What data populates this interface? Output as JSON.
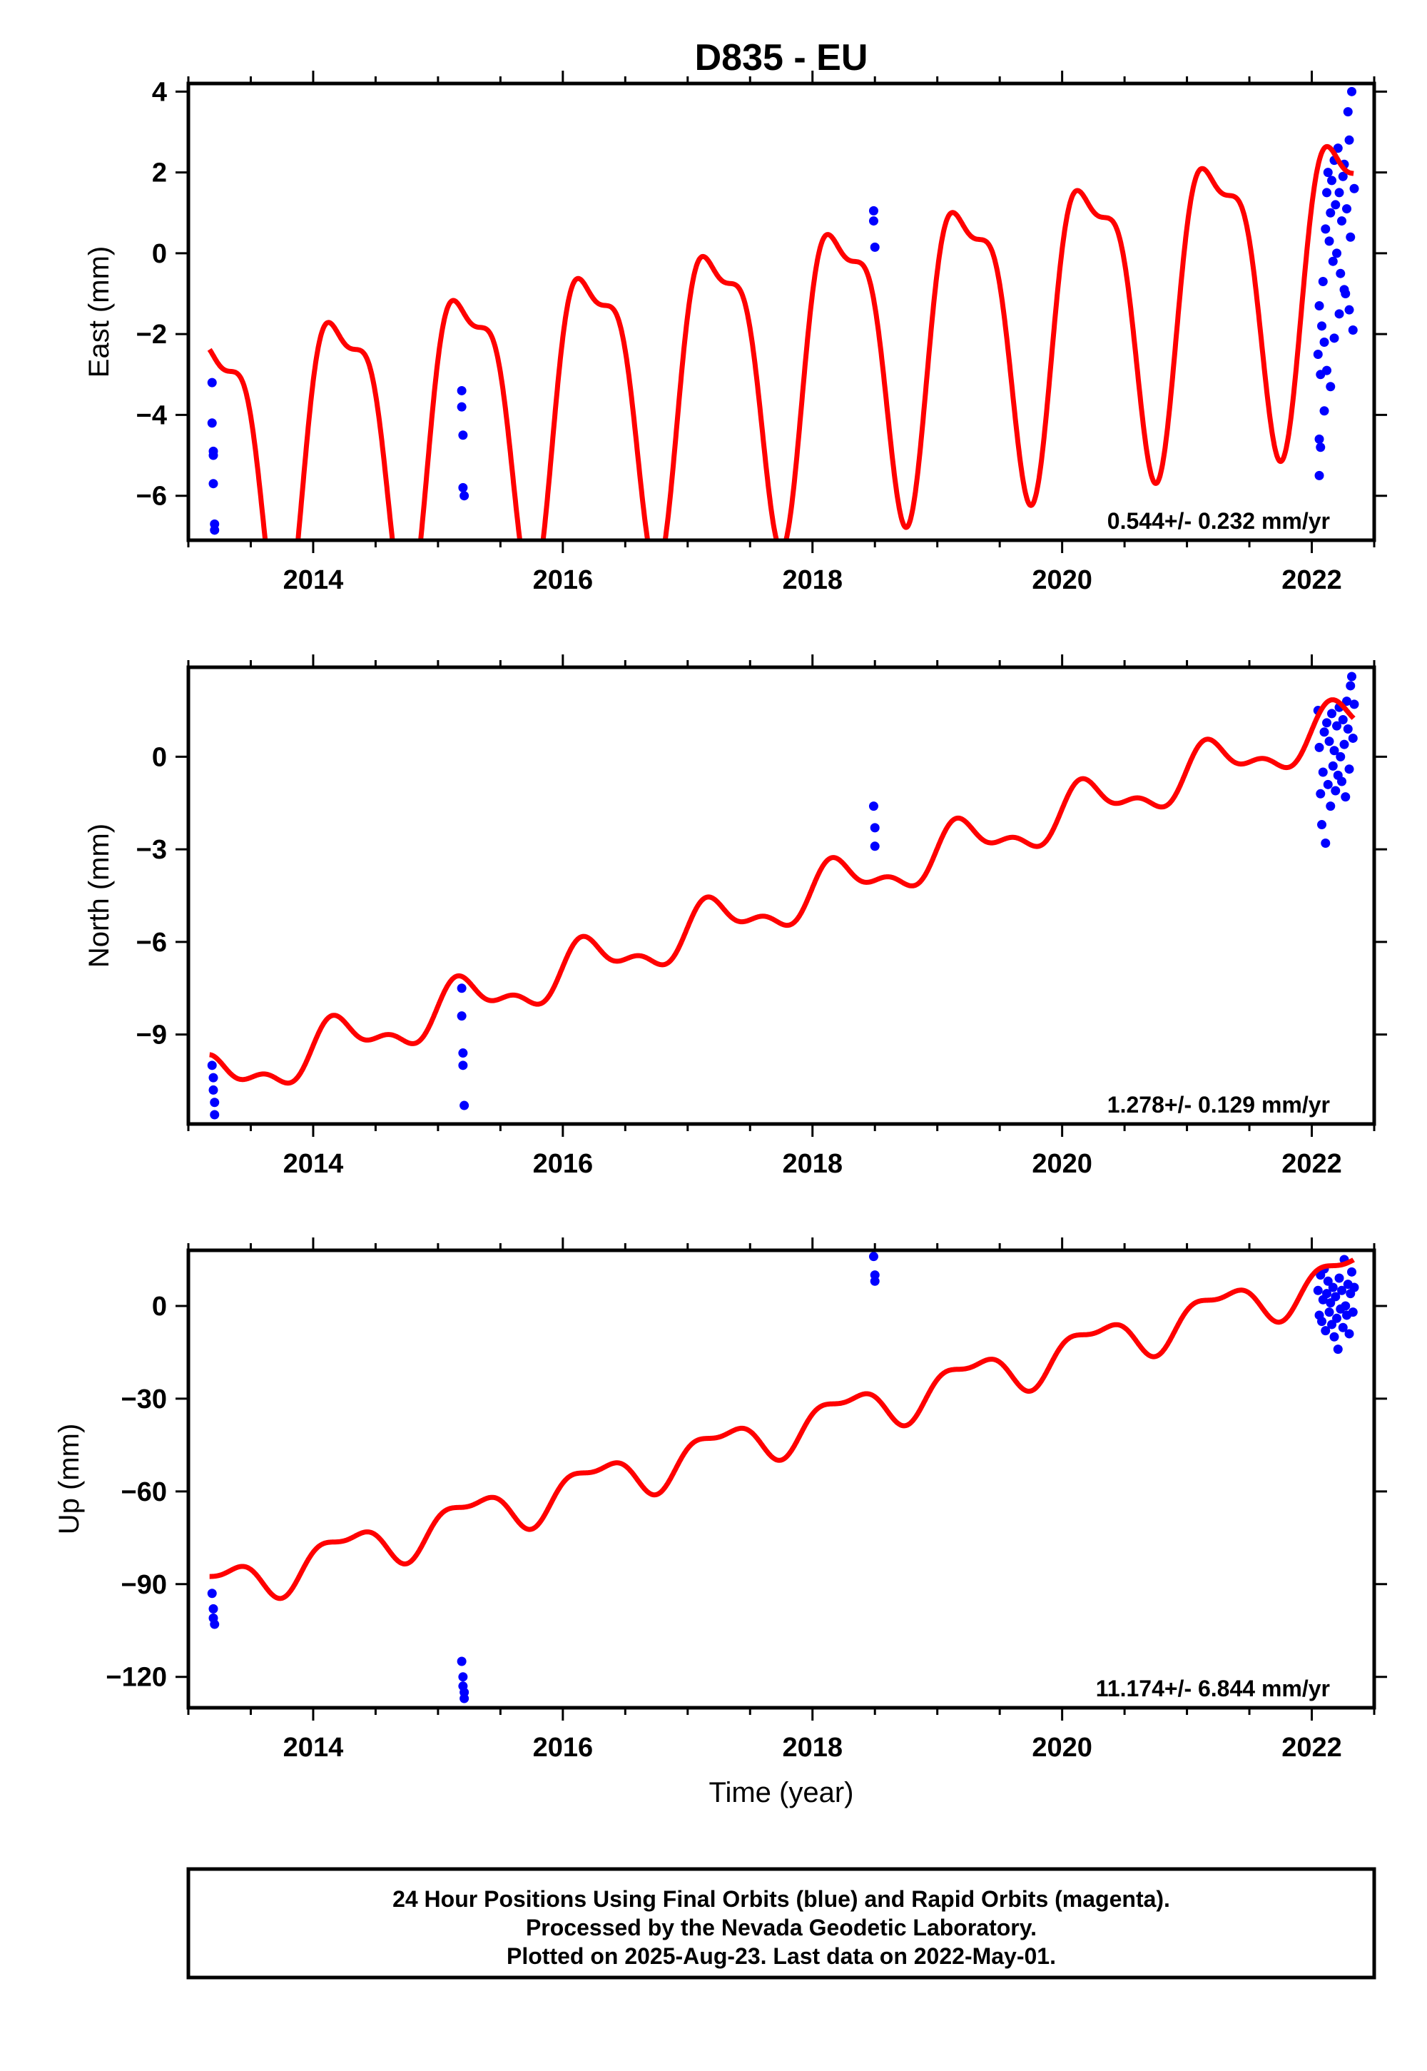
{
  "title": "D835 - EU",
  "colors": {
    "fit": "#ff0000",
    "final": "#0000ff",
    "frame": "#000000"
  },
  "chart_data": [
    {
      "type": "scatter",
      "name": "east",
      "ylabel": "East (mm)",
      "xlim": [
        2013.0,
        2022.5
      ],
      "ylim": [
        -7.1,
        4.2
      ],
      "xticks": [
        "2014",
        "2016",
        "2018",
        "2020",
        "2022"
      ],
      "xtick_values": [
        2014,
        2016,
        2018,
        2020,
        2022
      ],
      "yticks": [
        "4",
        "2",
        "0",
        "−2",
        "−4",
        "−6"
      ],
      "ytick_values": [
        4,
        2,
        0,
        -2,
        -4,
        -6
      ],
      "rate_label": "0.544+/- 0.232 mm/yr",
      "model": {
        "rate": 0.544,
        "ref_year": 2017.8,
        "offset": -2.6,
        "annual_cos": 0.3,
        "annual_sin": 3.5,
        "semi_cos": 1.2,
        "semi_sin": 0.2
      },
      "points": [
        [
          2013.19,
          -3.2
        ],
        [
          2013.19,
          -4.2
        ],
        [
          2013.2,
          -4.9
        ],
        [
          2013.2,
          -5.0
        ],
        [
          2013.2,
          -5.7
        ],
        [
          2013.21,
          -6.7
        ],
        [
          2013.21,
          -6.85
        ],
        [
          2015.19,
          -3.4
        ],
        [
          2015.19,
          -3.8
        ],
        [
          2015.2,
          -4.5
        ],
        [
          2015.2,
          -5.8
        ],
        [
          2015.21,
          -6.0
        ],
        [
          2018.49,
          1.05
        ],
        [
          2018.49,
          0.8
        ],
        [
          2018.5,
          0.15
        ],
        [
          2022.05,
          -2.5
        ],
        [
          2022.06,
          -1.3
        ],
        [
          2022.07,
          -3.0
        ],
        [
          2022.08,
          -1.8
        ],
        [
          2022.09,
          -0.7
        ],
        [
          2022.1,
          -2.2
        ],
        [
          2022.11,
          0.6
        ],
        [
          2022.12,
          1.5
        ],
        [
          2022.13,
          2.0
        ],
        [
          2022.14,
          0.3
        ],
        [
          2022.15,
          1.0
        ],
        [
          2022.16,
          1.8
        ],
        [
          2022.17,
          -0.2
        ],
        [
          2022.18,
          2.3
        ],
        [
          2022.19,
          1.2
        ],
        [
          2022.2,
          0.0
        ],
        [
          2022.21,
          2.6
        ],
        [
          2022.22,
          1.5
        ],
        [
          2022.23,
          -0.5
        ],
        [
          2022.24,
          0.8
        ],
        [
          2022.25,
          1.9
        ],
        [
          2022.26,
          2.2
        ],
        [
          2022.27,
          -1.0
        ],
        [
          2022.28,
          1.1
        ],
        [
          2022.29,
          3.5
        ],
        [
          2022.3,
          2.8
        ],
        [
          2022.31,
          0.4
        ],
        [
          2022.32,
          4.0
        ],
        [
          2022.33,
          -1.9
        ],
        [
          2022.34,
          1.6
        ],
        [
          2022.06,
          -4.6
        ],
        [
          2022.07,
          -4.8
        ],
        [
          2022.06,
          -5.5
        ],
        [
          2022.1,
          -3.9
        ],
        [
          2022.12,
          -2.9
        ],
        [
          2022.15,
          -3.3
        ],
        [
          2022.18,
          -2.1
        ],
        [
          2022.22,
          -1.5
        ],
        [
          2022.26,
          -0.9
        ],
        [
          2022.3,
          -1.4
        ]
      ]
    },
    {
      "type": "scatter",
      "name": "north",
      "ylabel": "North (mm)",
      "xlim": [
        2013.0,
        2022.5
      ],
      "ylim": [
        -11.9,
        2.9
      ],
      "xticks": [
        "2014",
        "2016",
        "2018",
        "2020",
        "2022"
      ],
      "xtick_values": [
        2014,
        2016,
        2018,
        2020,
        2022
      ],
      "yticks": [
        "0",
        "−3",
        "−6",
        "−9"
      ],
      "ytick_values": [
        0,
        -3,
        -6,
        -9
      ],
      "rate_label": "1.278+/- 0.129 mm/yr",
      "model": {
        "rate": 1.278,
        "ref_year": 2017.8,
        "offset": -4.7,
        "annual_cos": 0.2,
        "annual_sin": 0.65,
        "semi_cos": 0.0,
        "semi_sin": 0.35
      },
      "points": [
        [
          2013.19,
          -10.0
        ],
        [
          2013.2,
          -10.4
        ],
        [
          2013.2,
          -10.8
        ],
        [
          2013.21,
          -11.2
        ],
        [
          2013.21,
          -11.6
        ],
        [
          2015.19,
          -7.5
        ],
        [
          2015.19,
          -8.4
        ],
        [
          2015.2,
          -9.6
        ],
        [
          2015.2,
          -10.0
        ],
        [
          2015.21,
          -11.3
        ],
        [
          2018.49,
          -1.6
        ],
        [
          2018.5,
          -2.3
        ],
        [
          2018.5,
          -2.9
        ],
        [
          2022.05,
          1.5
        ],
        [
          2022.06,
          0.3
        ],
        [
          2022.07,
          -1.2
        ],
        [
          2022.08,
          -2.2
        ],
        [
          2022.09,
          -0.5
        ],
        [
          2022.1,
          0.8
        ],
        [
          2022.11,
          -2.8
        ],
        [
          2022.12,
          1.1
        ],
        [
          2022.13,
          -0.9
        ],
        [
          2022.14,
          0.5
        ],
        [
          2022.15,
          -1.6
        ],
        [
          2022.16,
          1.4
        ],
        [
          2022.17,
          -0.3
        ],
        [
          2022.18,
          0.2
        ],
        [
          2022.19,
          -1.1
        ],
        [
          2022.2,
          1.0
        ],
        [
          2022.21,
          -0.6
        ],
        [
          2022.22,
          1.6
        ],
        [
          2022.23,
          0.0
        ],
        [
          2022.24,
          -0.8
        ],
        [
          2022.25,
          1.2
        ],
        [
          2022.26,
          0.4
        ],
        [
          2022.27,
          -1.3
        ],
        [
          2022.28,
          1.8
        ],
        [
          2022.29,
          0.9
        ],
        [
          2022.3,
          -0.4
        ],
        [
          2022.31,
          2.3
        ],
        [
          2022.32,
          2.6
        ],
        [
          2022.33,
          0.6
        ],
        [
          2022.34,
          1.7
        ]
      ]
    },
    {
      "type": "scatter",
      "name": "up",
      "ylabel": "Up (mm)",
      "xlabel": "Time (year)",
      "xlim": [
        2013.0,
        2022.5
      ],
      "ylim": [
        -130,
        18
      ],
      "xticks": [
        "2014",
        "2016",
        "2018",
        "2020",
        "2022"
      ],
      "xtick_values": [
        2014,
        2016,
        2018,
        2020,
        2022
      ],
      "yticks": [
        "0",
        "−30",
        "−60",
        "−90",
        "−120"
      ],
      "ytick_values": [
        0,
        -30,
        -60,
        -90,
        -120
      ],
      "rate_label": "11.174+/- 6.844 mm/yr",
      "model": {
        "rate": 11.174,
        "ref_year": 2017.8,
        "offset": -40.0,
        "annual_cos": 0.0,
        "annual_sin": 6.5,
        "semi_cos": 2.8,
        "semi_sin": 0.0
      },
      "points": [
        [
          2013.19,
          -93
        ],
        [
          2013.2,
          -98
        ],
        [
          2013.2,
          -101
        ],
        [
          2013.21,
          -103
        ],
        [
          2015.19,
          -115
        ],
        [
          2015.2,
          -120
        ],
        [
          2015.2,
          -123
        ],
        [
          2015.21,
          -125
        ],
        [
          2015.21,
          -127
        ],
        [
          2018.49,
          16
        ],
        [
          2018.5,
          10
        ],
        [
          2018.5,
          8
        ],
        [
          2022.05,
          5
        ],
        [
          2022.06,
          -3
        ],
        [
          2022.07,
          10
        ],
        [
          2022.08,
          -5
        ],
        [
          2022.09,
          2
        ],
        [
          2022.1,
          12
        ],
        [
          2022.11,
          -8
        ],
        [
          2022.12,
          4
        ],
        [
          2022.13,
          8
        ],
        [
          2022.14,
          -2
        ],
        [
          2022.15,
          1
        ],
        [
          2022.16,
          -6
        ],
        [
          2022.17,
          6
        ],
        [
          2022.18,
          -10
        ],
        [
          2022.19,
          3
        ],
        [
          2022.2,
          -4
        ],
        [
          2022.21,
          -14
        ],
        [
          2022.22,
          9
        ],
        [
          2022.23,
          -1
        ],
        [
          2022.24,
          5
        ],
        [
          2022.25,
          -7
        ],
        [
          2022.26,
          15
        ],
        [
          2022.27,
          0
        ],
        [
          2022.28,
          -3
        ],
        [
          2022.29,
          7
        ],
        [
          2022.3,
          -9
        ],
        [
          2022.31,
          4
        ],
        [
          2022.32,
          11
        ],
        [
          2022.33,
          -2
        ],
        [
          2022.34,
          6
        ]
      ]
    }
  ],
  "footer": {
    "line1": "24 Hour Positions Using Final Orbits (blue) and Rapid Orbits (magenta).",
    "line2": "Processed by the Nevada Geodetic Laboratory.",
    "line3": "Plotted on 2025-Aug-23. Last data on 2022-May-01."
  }
}
